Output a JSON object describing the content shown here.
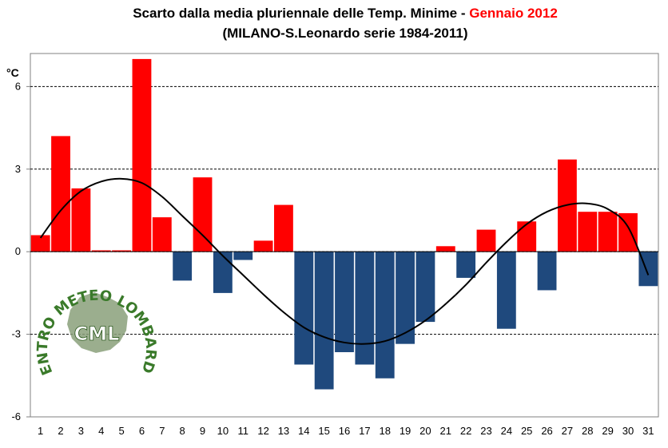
{
  "chart_data": {
    "type": "bar",
    "title": "Scarto dalla media pluriennale delle Temp. Minime - ",
    "title_highlight": "Gennaio 2012",
    "subtitle": "(MILANO-S.Leonardo serie 1984-2011)",
    "ylabel": "°C",
    "xlabel": "",
    "ylim": [
      -6,
      7.2
    ],
    "yticks": [
      -6,
      -3,
      0,
      3,
      6
    ],
    "grid": "horizontal-dashed",
    "categories": [
      "1",
      "2",
      "3",
      "4",
      "5",
      "6",
      "7",
      "8",
      "9",
      "10",
      "11",
      "12",
      "13",
      "14",
      "15",
      "16",
      "17",
      "18",
      "19",
      "20",
      "21",
      "22",
      "23",
      "24",
      "25",
      "26",
      "27",
      "28",
      "29",
      "30",
      "31"
    ],
    "values": [
      0.6,
      4.2,
      2.3,
      0.05,
      0.05,
      7.0,
      1.25,
      -1.05,
      2.7,
      -1.5,
      -0.3,
      0.4,
      1.7,
      -4.1,
      -5.0,
      -3.65,
      -4.1,
      -4.6,
      -3.35,
      -2.55,
      0.2,
      -0.95,
      0.8,
      -2.8,
      1.1,
      -1.4,
      3.35,
      1.45,
      1.45,
      1.4,
      -1.25
    ],
    "positive_color": "#ff0000",
    "negative_color": "#1f497d",
    "trend": {
      "name": "",
      "color": "#000000",
      "points": [
        [
          1,
          0.5
        ],
        [
          2,
          1.5
        ],
        [
          3,
          2.2
        ],
        [
          4,
          2.55
        ],
        [
          5,
          2.65
        ],
        [
          6,
          2.5
        ],
        [
          7,
          2.0
        ],
        [
          8,
          1.3
        ],
        [
          9,
          0.6
        ],
        [
          10,
          -0.15
        ],
        [
          11,
          -0.85
        ],
        [
          12,
          -1.55
        ],
        [
          13,
          -2.2
        ],
        [
          14,
          -2.75
        ],
        [
          15,
          -3.1
        ],
        [
          16,
          -3.3
        ],
        [
          17,
          -3.35
        ],
        [
          18,
          -3.25
        ],
        [
          19,
          -2.95
        ],
        [
          20,
          -2.5
        ],
        [
          21,
          -1.9
        ],
        [
          22,
          -1.2
        ],
        [
          23,
          -0.4
        ],
        [
          24,
          0.35
        ],
        [
          25,
          1.0
        ],
        [
          26,
          1.45
        ],
        [
          27,
          1.7
        ],
        [
          28,
          1.75
        ],
        [
          29,
          1.55
        ],
        [
          30,
          0.9
        ],
        [
          31,
          -0.85
        ]
      ]
    }
  },
  "logo": {
    "arc_text": "CENTRO METEO LOMBARDO",
    "initials": "CML"
  }
}
